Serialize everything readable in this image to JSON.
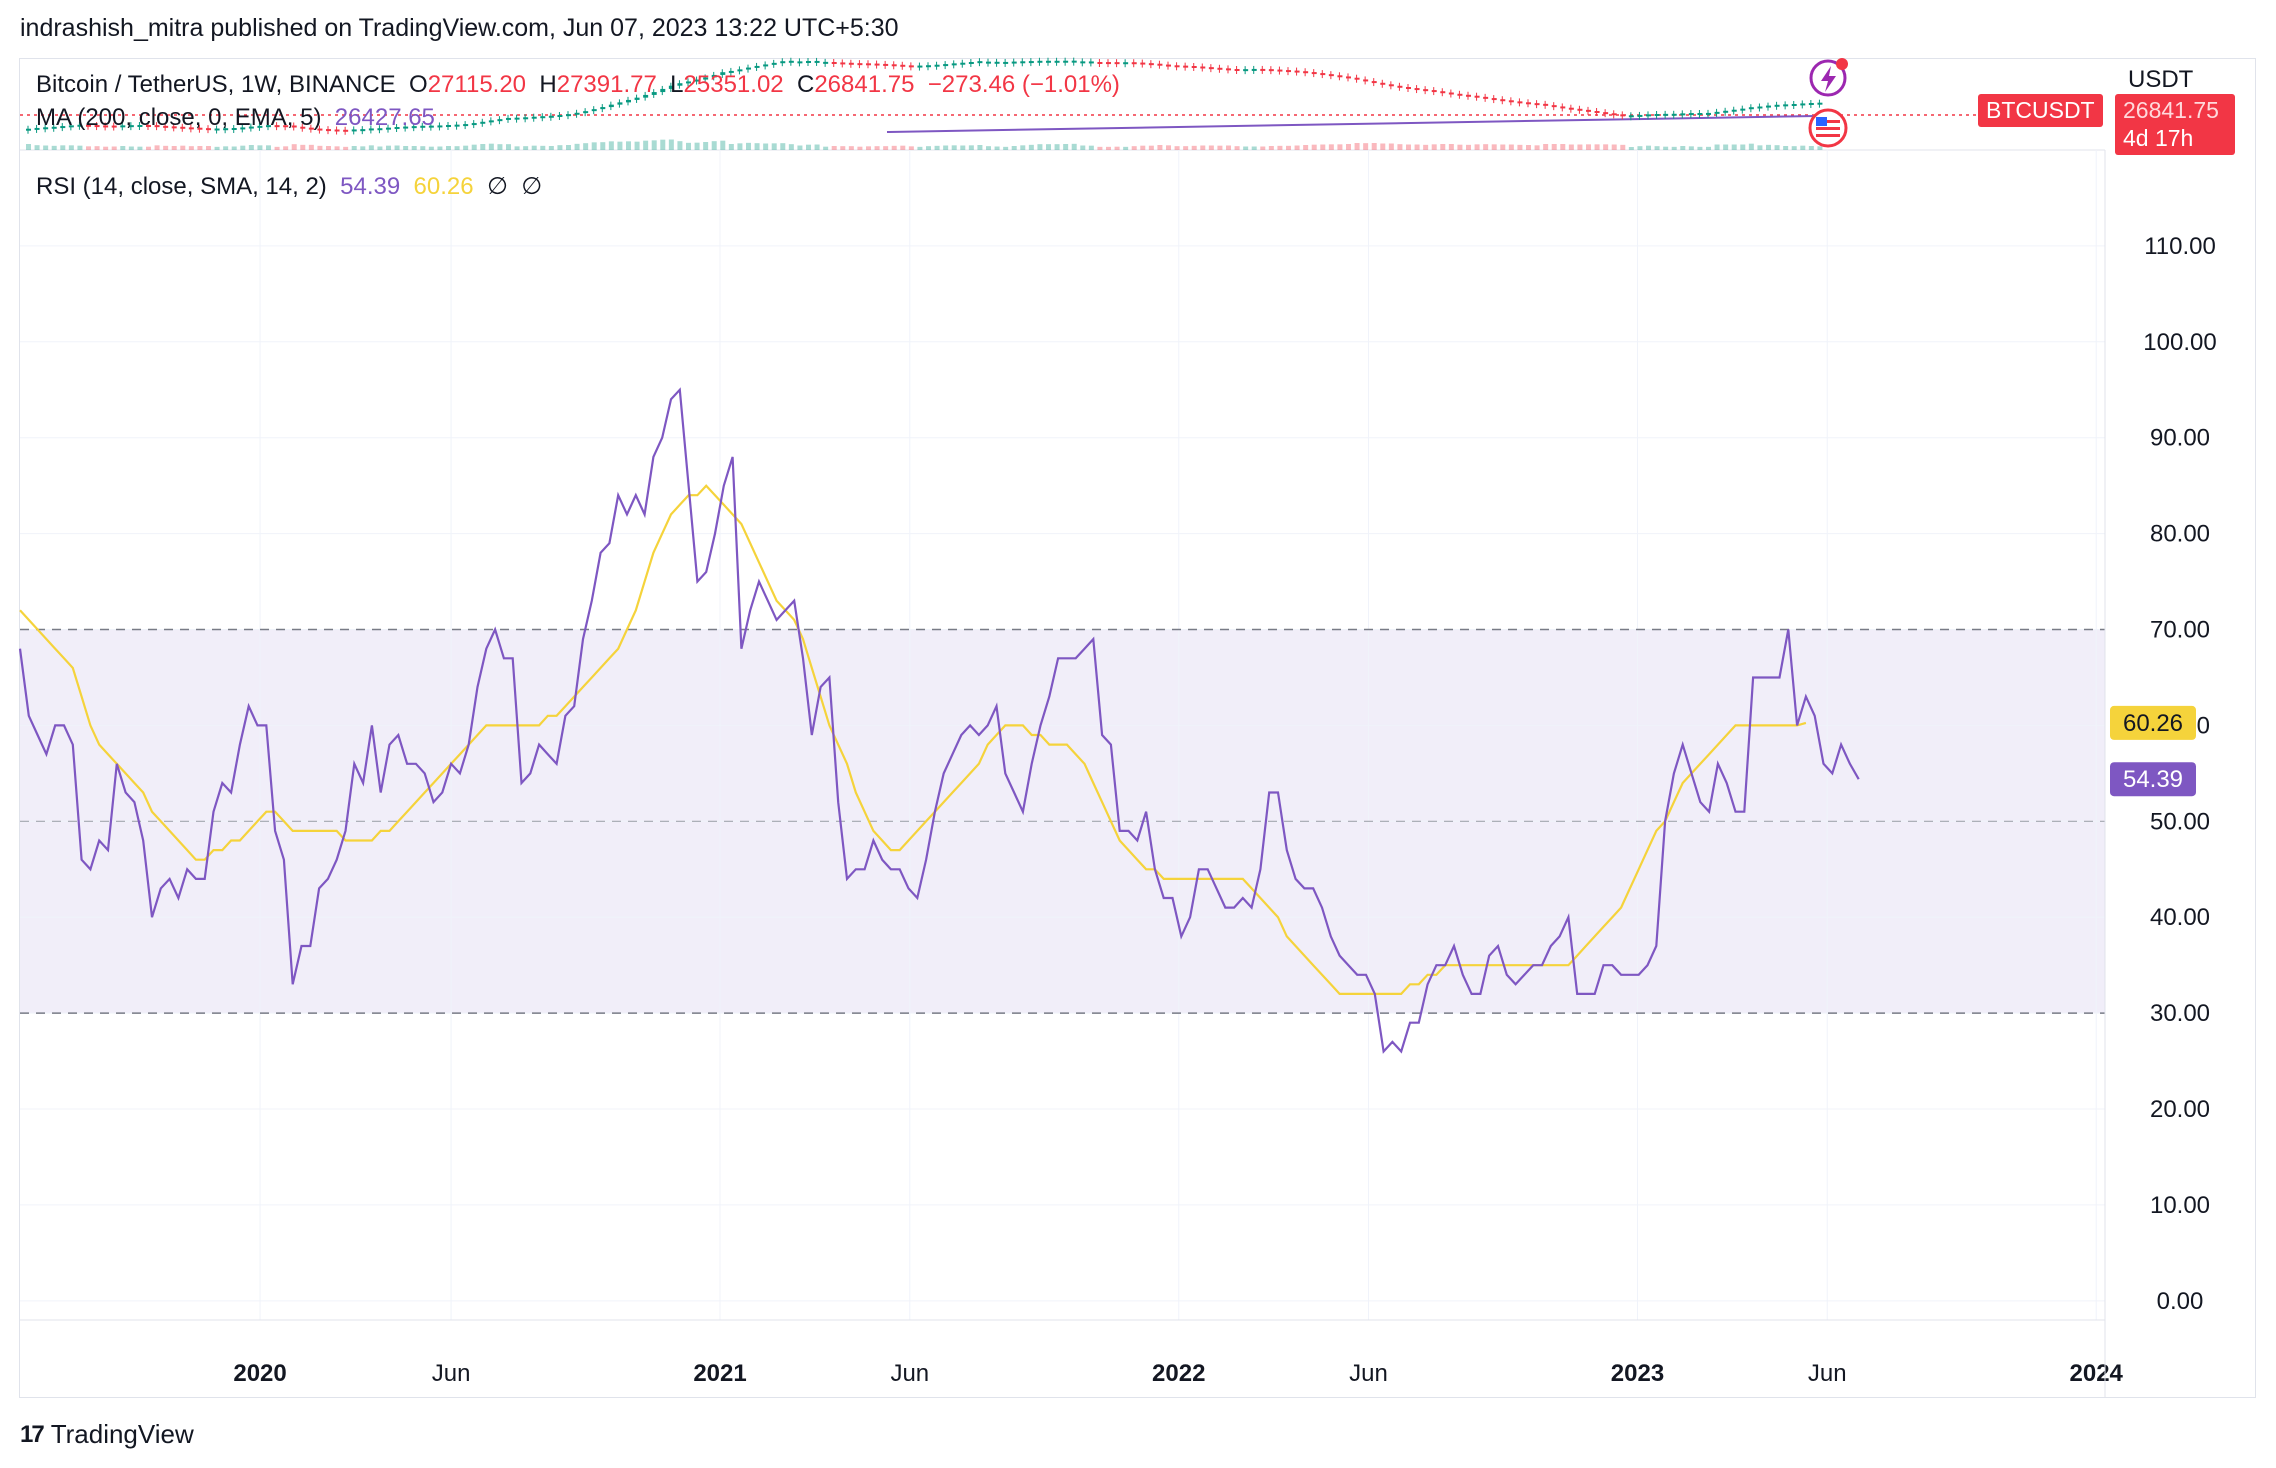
{
  "header": {
    "publisher_line": "indrashish_mitra published on TradingView.com, Jun 07, 2023 13:22 UTC+5:30"
  },
  "legend": {
    "symbol": "Bitcoin / TetherUS, 1W, BINANCE",
    "open_label": "O",
    "open_value": "27115.20",
    "high_label": "H",
    "high_value": "27391.77",
    "low_label": "L",
    "low_value": "25351.02",
    "close_label": "C",
    "close_value": "26841.75",
    "change_value": "−273.46 (−1.01%)",
    "ma_label": "MA (200, close, 0, EMA, 5)",
    "ma_value": "26427.65",
    "rsi_label": "RSI (14, close, SMA, 14, 2)",
    "rsi_value": "54.39",
    "rsi_ma_value": "60.26",
    "extra_1": "∅",
    "extra_2": "∅"
  },
  "price_pane": {
    "currency": "USDT",
    "symbol_badge": "BTCUSDT",
    "price_badge": "26841.75",
    "countdown_badge": "4d 17h"
  },
  "footer": {
    "brand": "TradingView",
    "logo_text": "17"
  },
  "colors": {
    "rsi_line": "#7e57c2",
    "rsi_ma_line": "#f5d33b",
    "band_fill": "#f1eef9",
    "up_candle": "#089981",
    "down_candle": "#f23645"
  },
  "chart_data": {
    "type": "line",
    "title": "RSI (14, close, SMA, 14, 2)",
    "xlabel": "",
    "ylabel": "",
    "ylim": [
      -2,
      120
    ],
    "yticks": [
      0,
      10,
      20,
      30,
      40,
      50,
      60,
      70,
      80,
      90,
      100,
      110
    ],
    "ytick_labels": [
      "0.00",
      "10.00",
      "20.00",
      "30.00",
      "40.00",
      "50.00",
      "60.00",
      "70.00",
      "80.00",
      "90.00",
      "100.00",
      "110.00"
    ],
    "xlim": [
      "2019-06-24",
      "2024-01-08"
    ],
    "xticks": [
      {
        "date": "2020-01-01",
        "label": "2020"
      },
      {
        "date": "2020-06-01",
        "label": "Jun"
      },
      {
        "date": "2021-01-01",
        "label": "2021"
      },
      {
        "date": "2021-06-01",
        "label": "Jun"
      },
      {
        "date": "2022-01-01",
        "label": "2022"
      },
      {
        "date": "2022-06-01",
        "label": "Jun"
      },
      {
        "date": "2023-01-01",
        "label": "2023"
      },
      {
        "date": "2023-06-01",
        "label": "Jun"
      },
      {
        "date": "2024-01-01",
        "label": "2024"
      }
    ],
    "bands": {
      "upper": 70,
      "middle": 50,
      "lower": 30
    },
    "grid": true,
    "legend": "top-left",
    "last_values": {
      "RSI": "54.39",
      "RSI-based MA": "60.26"
    },
    "series": [
      {
        "x_start": "2019-06-24",
        "interval_days": 7,
        "values": [
          68,
          61,
          59,
          57,
          60,
          60,
          58,
          46,
          45,
          48,
          47,
          56,
          53,
          52,
          48,
          40,
          43,
          44,
          42,
          45,
          44,
          44,
          51,
          54,
          53,
          58,
          62,
          60,
          60,
          49,
          46,
          33,
          37,
          37,
          43,
          44,
          46,
          49,
          56,
          54,
          60,
          53,
          58,
          59,
          56,
          56,
          55,
          52,
          53,
          56,
          55,
          58,
          64,
          68,
          70,
          67,
          67,
          54,
          55,
          58,
          57,
          56,
          61,
          62,
          69,
          73,
          78,
          79,
          84,
          82,
          84,
          82,
          88,
          90,
          94,
          95,
          85,
          75,
          76,
          80,
          85,
          88,
          68,
          72,
          75,
          73,
          71,
          72,
          73,
          67,
          59,
          64,
          65,
          52,
          44,
          45,
          45,
          48,
          46,
          45,
          45,
          43,
          42,
          46,
          51,
          55,
          57,
          59,
          60,
          59,
          60,
          62,
          55,
          53,
          51,
          56,
          60,
          63,
          67,
          67,
          67,
          68,
          69,
          59,
          58,
          49,
          49,
          48,
          51,
          45,
          42,
          42,
          38,
          40,
          45,
          45,
          43,
          41,
          41,
          42,
          41,
          45,
          53,
          53,
          47,
          44,
          43,
          43,
          41,
          38,
          36,
          35,
          34,
          34,
          32,
          26,
          27,
          26,
          29,
          29,
          33,
          35,
          35,
          37,
          34,
          32,
          32,
          36,
          37,
          34,
          33,
          34,
          35,
          35,
          37,
          38,
          40,
          32,
          32,
          32,
          35,
          35,
          34,
          34,
          34,
          35,
          37,
          50,
          55,
          58,
          55,
          52,
          51,
          56,
          54,
          51,
          51,
          65,
          65,
          65,
          65,
          70,
          60,
          63,
          61,
          56,
          55,
          58,
          56,
          54.39
        ]
      },
      {
        "x_start": "2019-06-24",
        "interval_days": 7,
        "values": [
          72,
          71,
          70,
          69,
          68,
          67,
          66,
          63,
          60,
          58,
          57,
          56,
          55,
          54,
          53,
          51,
          50,
          49,
          48,
          47,
          46,
          46,
          47,
          47,
          48,
          48,
          49,
          50,
          51,
          51,
          50,
          49,
          49,
          49,
          49,
          49,
          49,
          48,
          48,
          48,
          48,
          49,
          49,
          50,
          51,
          52,
          53,
          54,
          55,
          56,
          57,
          58,
          59,
          60,
          60,
          60,
          60,
          60,
          60,
          60,
          61,
          61,
          62,
          63,
          64,
          65,
          66,
          67,
          68,
          70,
          72,
          75,
          78,
          80,
          82,
          83,
          84,
          84,
          85,
          84,
          83,
          82,
          81,
          79,
          77,
          75,
          73,
          72,
          71,
          69,
          66,
          63,
          60,
          58,
          56,
          53,
          51,
          49,
          48,
          47,
          47,
          48,
          49,
          50,
          51,
          52,
          53,
          54,
          55,
          56,
          58,
          59,
          60,
          60,
          60,
          59,
          59,
          58,
          58,
          58,
          57,
          56,
          54,
          52,
          50,
          48,
          47,
          46,
          45,
          45,
          44,
          44,
          44,
          44,
          44,
          44,
          44,
          44,
          44,
          44,
          43,
          42,
          41,
          40,
          38,
          37,
          36,
          35,
          34,
          33,
          32,
          32,
          32,
          32,
          32,
          32,
          32,
          32,
          33,
          33,
          34,
          34,
          35,
          35,
          35,
          35,
          35,
          35,
          35,
          35,
          35,
          35,
          35,
          35,
          35,
          35,
          35,
          36,
          37,
          38,
          39,
          40,
          41,
          43,
          45,
          47,
          49,
          50,
          52,
          54,
          55,
          56,
          57,
          58,
          59,
          60,
          60,
          60,
          60,
          60,
          60,
          60,
          60,
          60.26
        ]
      }
    ]
  }
}
